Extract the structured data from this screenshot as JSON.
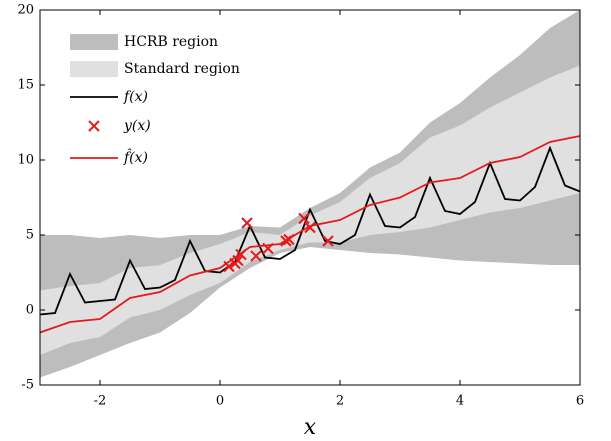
{
  "chart_data": {
    "type": "line",
    "x_label": "x",
    "xlim": [
      -3,
      6
    ],
    "xticks": [
      -2,
      0,
      2,
      4,
      6
    ],
    "ylim": [
      -5,
      20
    ],
    "yticks": [
      -5,
      0,
      5,
      10,
      15,
      20
    ],
    "legend": "upper-left",
    "series": [
      {
        "name": "HCRB region",
        "type": "area",
        "color": "#bdbdbd",
        "x": [
          -3,
          -2.5,
          -2,
          -1.5,
          -1,
          -0.5,
          0,
          0.5,
          1,
          1.5,
          2,
          2.5,
          3,
          3.5,
          4,
          4.5,
          5,
          5.5,
          6
        ],
        "lower": [
          -4.5,
          -3.8,
          -3,
          -2.2,
          -1.5,
          -0.2,
          1.5,
          2.8,
          3.8,
          4.2,
          4.0,
          3.8,
          3.7,
          3.5,
          3.3,
          3.2,
          3.1,
          3.0,
          3.0
        ],
        "upper": [
          5,
          5,
          4.8,
          5,
          4.8,
          5,
          5,
          5.6,
          5.5,
          6.8,
          7.8,
          9.5,
          10.5,
          12.5,
          13.8,
          15.5,
          17,
          18.8,
          20
        ]
      },
      {
        "name": "Standard region",
        "type": "area",
        "color": "#e0e0e0",
        "x": [
          -3,
          -2.5,
          -2,
          -1.5,
          -1,
          -0.5,
          0,
          0.5,
          1,
          1.5,
          2,
          2.5,
          3,
          3.5,
          4,
          4.5,
          5,
          5.5,
          6
        ],
        "lower": [
          -3,
          -2.2,
          -1.8,
          -0.5,
          0,
          1,
          1.8,
          3.2,
          4.0,
          4.5,
          4.5,
          5,
          5.2,
          5.5,
          6,
          6.5,
          6.8,
          7.3,
          7.8
        ],
        "upper": [
          1.3,
          1.6,
          1.8,
          2.8,
          3,
          3.8,
          4.4,
          5.2,
          5,
          6.3,
          7.2,
          8.8,
          9.8,
          11.5,
          12.3,
          13.5,
          14.5,
          15.5,
          16.3
        ]
      },
      {
        "name": "f(x)",
        "type": "line",
        "color": "#000000",
        "x": [
          -3,
          -2.75,
          -2.5,
          -2.25,
          -2,
          -1.75,
          -1.5,
          -1.25,
          -1,
          -0.75,
          -0.5,
          -0.25,
          0,
          0.25,
          0.5,
          0.75,
          1,
          1.25,
          1.5,
          1.75,
          2,
          2.25,
          2.5,
          2.75,
          3,
          3.25,
          3.5,
          3.75,
          4,
          4.25,
          4.5,
          4.75,
          5,
          5.25,
          5.5,
          5.75,
          6
        ],
        "values": [
          -0.3,
          -0.2,
          2.4,
          0.5,
          0.6,
          0.7,
          3.3,
          1.4,
          1.5,
          2.0,
          4.6,
          2.6,
          2.5,
          3.2,
          5.6,
          3.5,
          3.4,
          4.0,
          6.7,
          4.6,
          4.4,
          5.0,
          7.7,
          5.6,
          5.5,
          6.2,
          8.8,
          6.6,
          6.4,
          7.2,
          9.8,
          7.4,
          7.3,
          8.2,
          10.8,
          8.3,
          7.9
        ]
      },
      {
        "name": "y(x)",
        "type": "scatter",
        "color": "#e41a1c",
        "x": [
          0.15,
          0.25,
          0.3,
          0.35,
          0.45,
          0.6,
          0.8,
          1.1,
          1.15,
          1.4,
          1.5,
          1.8
        ],
        "values": [
          2.9,
          3.1,
          3.3,
          3.7,
          5.8,
          3.6,
          4.1,
          4.6,
          4.7,
          6.1,
          5.5,
          4.6
        ]
      },
      {
        "name": "f̂(x)",
        "type": "line",
        "color": "#e41a1c",
        "x": [
          -3,
          -2.5,
          -2,
          -1.5,
          -1,
          -0.5,
          0,
          0.5,
          1,
          1.5,
          2,
          2.5,
          3,
          3.5,
          4,
          4.5,
          5,
          5.5,
          6
        ],
        "values": [
          -1.5,
          -0.8,
          -0.6,
          0.8,
          1.2,
          2.3,
          2.8,
          4.2,
          4.4,
          5.6,
          6.0,
          7.0,
          7.5,
          8.5,
          8.8,
          9.8,
          10.2,
          11.2,
          11.6
        ]
      }
    ]
  }
}
